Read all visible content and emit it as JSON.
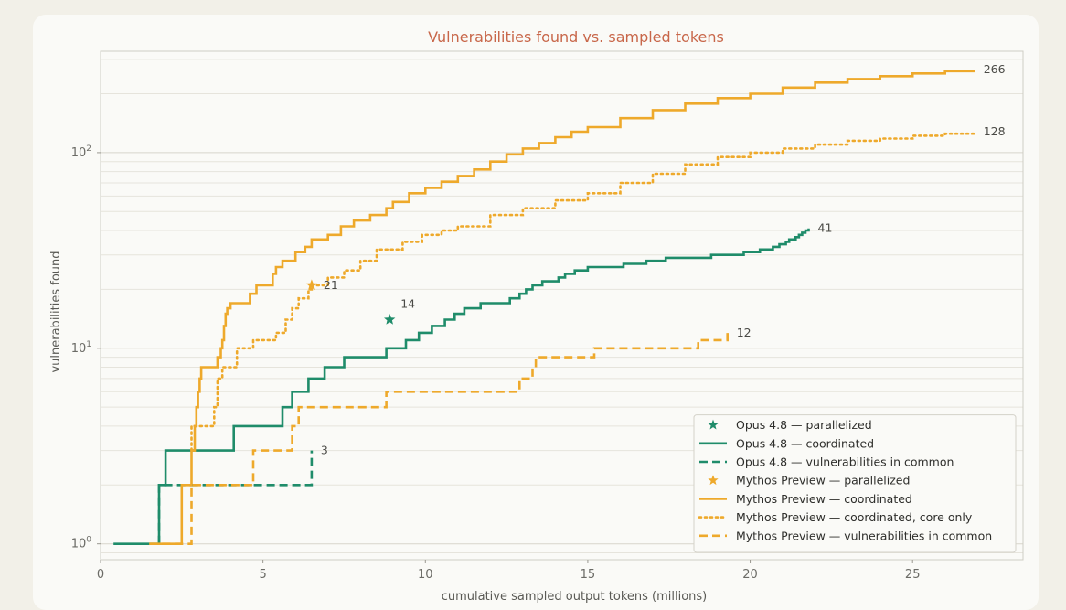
{
  "chart_data": {
    "type": "line",
    "title": "Vulnerabilities found vs. sampled tokens",
    "xlabel": "cumulative sampled output tokens (millions)",
    "ylabel": "vulnerabilities found",
    "xlim": [
      0,
      28.4
    ],
    "ylim": [
      0.83,
      330
    ],
    "yscale": "log",
    "x_ticks": [
      0,
      5,
      10,
      15,
      20,
      25
    ],
    "y_ticks": [
      {
        "value": 1,
        "base": "10",
        "exp": "0"
      },
      {
        "value": 10,
        "base": "10",
        "exp": "1"
      },
      {
        "value": 100,
        "base": "10",
        "exp": "2"
      }
    ],
    "grid": "horizontal",
    "legend_position": "bottom-right",
    "colors": {
      "opus": "#1f8c6a",
      "mythos": "#eea92b"
    },
    "series": [
      {
        "name": "Opus 4.8 — coordinated",
        "color": "#1f8c6a",
        "style": "solid",
        "end_label": "41",
        "points": [
          [
            0.4,
            1
          ],
          [
            1.8,
            1
          ],
          [
            1.8,
            2
          ],
          [
            2.0,
            2
          ],
          [
            2.0,
            3
          ],
          [
            4.1,
            3
          ],
          [
            4.1,
            4
          ],
          [
            5.6,
            4
          ],
          [
            5.6,
            5
          ],
          [
            5.9,
            5
          ],
          [
            5.9,
            6
          ],
          [
            6.4,
            6
          ],
          [
            6.4,
            7
          ],
          [
            6.9,
            7
          ],
          [
            6.9,
            8
          ],
          [
            7.5,
            8
          ],
          [
            7.5,
            9
          ],
          [
            8.8,
            9
          ],
          [
            8.8,
            10
          ],
          [
            9.4,
            10
          ],
          [
            9.4,
            11
          ],
          [
            9.8,
            11
          ],
          [
            9.8,
            12
          ],
          [
            10.2,
            12
          ],
          [
            10.2,
            13
          ],
          [
            10.6,
            13
          ],
          [
            10.6,
            14
          ],
          [
            10.9,
            14
          ],
          [
            10.9,
            15
          ],
          [
            11.2,
            15
          ],
          [
            11.2,
            16
          ],
          [
            11.7,
            16
          ],
          [
            11.7,
            17
          ],
          [
            12.6,
            17
          ],
          [
            12.6,
            18
          ],
          [
            12.9,
            18
          ],
          [
            12.9,
            19
          ],
          [
            13.1,
            19
          ],
          [
            13.1,
            20
          ],
          [
            13.3,
            20
          ],
          [
            13.3,
            21
          ],
          [
            13.6,
            21
          ],
          [
            13.6,
            22
          ],
          [
            14.1,
            22
          ],
          [
            14.1,
            23
          ],
          [
            14.3,
            23
          ],
          [
            14.3,
            24
          ],
          [
            14.6,
            24
          ],
          [
            14.6,
            25
          ],
          [
            15.0,
            25
          ],
          [
            15.0,
            26
          ],
          [
            16.1,
            26
          ],
          [
            16.1,
            27
          ],
          [
            16.8,
            27
          ],
          [
            16.8,
            28
          ],
          [
            17.4,
            28
          ],
          [
            17.4,
            29
          ],
          [
            18.8,
            29
          ],
          [
            18.8,
            30
          ],
          [
            19.8,
            30
          ],
          [
            19.8,
            31
          ],
          [
            20.3,
            31
          ],
          [
            20.3,
            32
          ],
          [
            20.7,
            32
          ],
          [
            20.7,
            33
          ],
          [
            20.9,
            33
          ],
          [
            20.9,
            34
          ],
          [
            21.1,
            34
          ],
          [
            21.1,
            35
          ],
          [
            21.2,
            35
          ],
          [
            21.2,
            36
          ],
          [
            21.4,
            36
          ],
          [
            21.4,
            37
          ],
          [
            21.5,
            37
          ],
          [
            21.5,
            38
          ],
          [
            21.6,
            38
          ],
          [
            21.6,
            39
          ],
          [
            21.7,
            39
          ],
          [
            21.7,
            40
          ],
          [
            21.8,
            40
          ],
          [
            21.8,
            41
          ]
        ]
      },
      {
        "name": "Opus 4.8 — vulnerabilities in common",
        "color": "#1f8c6a",
        "style": "dashed",
        "end_label": "3",
        "points": [
          [
            1.8,
            1
          ],
          [
            1.8,
            2
          ],
          [
            6.5,
            2
          ],
          [
            6.5,
            3
          ]
        ]
      },
      {
        "name": "Mythos Preview — coordinated",
        "color": "#eea92b",
        "style": "solid",
        "end_label": "266",
        "points": [
          [
            1.5,
            1
          ],
          [
            2.5,
            1
          ],
          [
            2.5,
            2
          ],
          [
            2.8,
            2
          ],
          [
            2.8,
            3
          ],
          [
            2.9,
            3
          ],
          [
            2.9,
            4
          ],
          [
            2.95,
            4
          ],
          [
            2.95,
            5
          ],
          [
            3.0,
            5
          ],
          [
            3.0,
            6
          ],
          [
            3.05,
            6
          ],
          [
            3.05,
            7
          ],
          [
            3.1,
            7
          ],
          [
            3.1,
            8
          ],
          [
            3.6,
            8
          ],
          [
            3.6,
            9
          ],
          [
            3.7,
            9
          ],
          [
            3.7,
            10
          ],
          [
            3.75,
            10
          ],
          [
            3.75,
            11
          ],
          [
            3.8,
            11
          ],
          [
            3.8,
            13
          ],
          [
            3.85,
            13
          ],
          [
            3.85,
            15
          ],
          [
            3.9,
            15
          ],
          [
            3.9,
            16
          ],
          [
            4.0,
            16
          ],
          [
            4.0,
            17
          ],
          [
            4.6,
            17
          ],
          [
            4.6,
            19
          ],
          [
            4.8,
            19
          ],
          [
            4.8,
            21
          ],
          [
            5.3,
            21
          ],
          [
            5.3,
            24
          ],
          [
            5.4,
            24
          ],
          [
            5.4,
            26
          ],
          [
            5.6,
            26
          ],
          [
            5.6,
            28
          ],
          [
            6.0,
            28
          ],
          [
            6.0,
            31
          ],
          [
            6.3,
            31
          ],
          [
            6.3,
            33
          ],
          [
            6.5,
            33
          ],
          [
            6.5,
            36
          ],
          [
            7.0,
            36
          ],
          [
            7.0,
            38
          ],
          [
            7.4,
            38
          ],
          [
            7.4,
            42
          ],
          [
            7.8,
            42
          ],
          [
            7.8,
            45
          ],
          [
            8.3,
            45
          ],
          [
            8.3,
            48
          ],
          [
            8.8,
            48
          ],
          [
            8.8,
            52
          ],
          [
            9.0,
            52
          ],
          [
            9.0,
            56
          ],
          [
            9.5,
            56
          ],
          [
            9.5,
            62
          ],
          [
            10.0,
            62
          ],
          [
            10.0,
            66
          ],
          [
            10.5,
            66
          ],
          [
            10.5,
            71
          ],
          [
            11.0,
            71
          ],
          [
            11.0,
            76
          ],
          [
            11.5,
            76
          ],
          [
            11.5,
            82
          ],
          [
            12.0,
            82
          ],
          [
            12.0,
            90
          ],
          [
            12.5,
            90
          ],
          [
            12.5,
            98
          ],
          [
            13.0,
            98
          ],
          [
            13.0,
            105
          ],
          [
            13.5,
            105
          ],
          [
            13.5,
            112
          ],
          [
            14.0,
            112
          ],
          [
            14.0,
            120
          ],
          [
            14.5,
            120
          ],
          [
            14.5,
            128
          ],
          [
            15.0,
            128
          ],
          [
            15.0,
            135
          ],
          [
            16.0,
            135
          ],
          [
            16.0,
            150
          ],
          [
            17.0,
            150
          ],
          [
            17.0,
            165
          ],
          [
            18.0,
            165
          ],
          [
            18.0,
            178
          ],
          [
            19.0,
            178
          ],
          [
            19.0,
            190
          ],
          [
            20.0,
            190
          ],
          [
            20.0,
            200
          ],
          [
            21.0,
            200
          ],
          [
            21.0,
            215
          ],
          [
            22.0,
            215
          ],
          [
            22.0,
            228
          ],
          [
            23.0,
            228
          ],
          [
            23.0,
            238
          ],
          [
            24.0,
            238
          ],
          [
            24.0,
            246
          ],
          [
            25.0,
            246
          ],
          [
            25.0,
            254
          ],
          [
            26.0,
            254
          ],
          [
            26.0,
            261
          ],
          [
            26.9,
            261
          ],
          [
            26.9,
            266
          ]
        ]
      },
      {
        "name": "Mythos Preview — coordinated, core only",
        "color": "#eea92b",
        "style": "dotted",
        "end_label": "128",
        "points": [
          [
            2.8,
            3
          ],
          [
            2.8,
            4
          ],
          [
            3.5,
            4
          ],
          [
            3.5,
            5
          ],
          [
            3.6,
            5
          ],
          [
            3.6,
            7
          ],
          [
            3.75,
            7
          ],
          [
            3.75,
            8
          ],
          [
            4.2,
            8
          ],
          [
            4.2,
            10
          ],
          [
            4.7,
            10
          ],
          [
            4.7,
            11
          ],
          [
            5.4,
            11
          ],
          [
            5.4,
            12
          ],
          [
            5.7,
            12
          ],
          [
            5.7,
            14
          ],
          [
            5.9,
            14
          ],
          [
            5.9,
            16
          ],
          [
            6.1,
            16
          ],
          [
            6.1,
            18
          ],
          [
            6.4,
            18
          ],
          [
            6.4,
            20
          ],
          [
            6.5,
            20
          ],
          [
            6.5,
            21
          ],
          [
            7.0,
            21
          ],
          [
            7.0,
            23
          ],
          [
            7.5,
            23
          ],
          [
            7.5,
            25
          ],
          [
            8.0,
            25
          ],
          [
            8.0,
            28
          ],
          [
            8.5,
            28
          ],
          [
            8.5,
            32
          ],
          [
            9.3,
            32
          ],
          [
            9.3,
            35
          ],
          [
            9.9,
            35
          ],
          [
            9.9,
            38
          ],
          [
            10.5,
            38
          ],
          [
            10.5,
            40
          ],
          [
            11.0,
            40
          ],
          [
            11.0,
            42
          ],
          [
            12.0,
            42
          ],
          [
            12.0,
            48
          ],
          [
            13.0,
            48
          ],
          [
            13.0,
            52
          ],
          [
            14.0,
            52
          ],
          [
            14.0,
            57
          ],
          [
            15.0,
            57
          ],
          [
            15.0,
            62
          ],
          [
            16.0,
            62
          ],
          [
            16.0,
            70
          ],
          [
            17.0,
            70
          ],
          [
            17.0,
            78
          ],
          [
            18.0,
            78
          ],
          [
            18.0,
            87
          ],
          [
            19.0,
            87
          ],
          [
            19.0,
            95
          ],
          [
            20.0,
            95
          ],
          [
            20.0,
            100
          ],
          [
            21.0,
            100
          ],
          [
            21.0,
            105
          ],
          [
            22.0,
            105
          ],
          [
            22.0,
            110
          ],
          [
            23.0,
            110
          ],
          [
            23.0,
            115
          ],
          [
            24.0,
            115
          ],
          [
            24.0,
            118
          ],
          [
            25.0,
            118
          ],
          [
            25.0,
            122
          ],
          [
            26.0,
            122
          ],
          [
            26.0,
            125
          ],
          [
            26.9,
            125
          ],
          [
            26.9,
            128
          ]
        ]
      },
      {
        "name": "Mythos Preview — vulnerabilities in common",
        "color": "#eea92b",
        "style": "dashed",
        "end_label": "12",
        "points": [
          [
            1.5,
            1
          ],
          [
            2.8,
            1
          ],
          [
            2.8,
            2
          ],
          [
            4.7,
            2
          ],
          [
            4.7,
            3
          ],
          [
            5.9,
            3
          ],
          [
            5.9,
            4
          ],
          [
            6.1,
            4
          ],
          [
            6.1,
            5
          ],
          [
            7.2,
            5
          ],
          [
            7.2,
            5
          ],
          [
            8.8,
            5
          ],
          [
            8.8,
            6
          ],
          [
            12.9,
            6
          ],
          [
            12.9,
            7
          ],
          [
            13.3,
            7
          ],
          [
            13.3,
            8
          ],
          [
            13.4,
            8
          ],
          [
            13.4,
            9
          ],
          [
            15.2,
            9
          ],
          [
            15.2,
            10
          ],
          [
            18.4,
            10
          ],
          [
            18.4,
            11
          ],
          [
            19.3,
            11
          ],
          [
            19.3,
            12
          ]
        ]
      }
    ],
    "markers": [
      {
        "name": "Opus 4.8 — parallelized",
        "color": "#1f8c6a",
        "x": 8.9,
        "y": 14,
        "label": "14"
      },
      {
        "name": "Mythos Preview — parallelized",
        "color": "#eea92b",
        "x": 6.5,
        "y": 21,
        "label": "21"
      }
    ],
    "legend": [
      {
        "label": "Opus 4.8 — parallelized",
        "kind": "star",
        "color": "#1f8c6a"
      },
      {
        "label": "Opus 4.8 — coordinated",
        "kind": "solid",
        "color": "#1f8c6a"
      },
      {
        "label": "Opus 4.8 — vulnerabilities in common",
        "kind": "dashed",
        "color": "#1f8c6a"
      },
      {
        "label": "Mythos Preview — parallelized",
        "kind": "star",
        "color": "#eea92b"
      },
      {
        "label": "Mythos Preview — coordinated",
        "kind": "solid",
        "color": "#eea92b"
      },
      {
        "label": "Mythos Preview — coordinated, core only",
        "kind": "dotted",
        "color": "#eea92b"
      },
      {
        "label": "Mythos Preview — vulnerabilities in common",
        "kind": "dashed",
        "color": "#eea92b"
      }
    ]
  }
}
